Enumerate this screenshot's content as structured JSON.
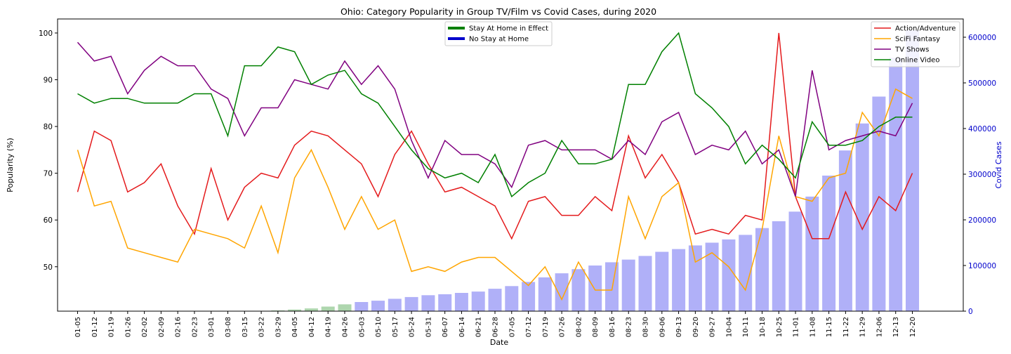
{
  "chart_data": {
    "type": "line",
    "title": "Ohio: Category Popularity in Group TV/Film vs Covid Cases, during 2020",
    "xlabel": "Date",
    "ylabel": "Popularity (%)",
    "y2label": "Covid Cases",
    "ylim": [
      40.5,
      103
    ],
    "yticks": [
      50,
      60,
      70,
      80,
      90,
      100
    ],
    "y2lim": [
      0,
      640000
    ],
    "y2ticks": [
      0,
      100000,
      200000,
      300000,
      400000,
      500000,
      600000
    ],
    "grid": false,
    "categories": [
      "01-05",
      "01-12",
      "01-19",
      "01-26",
      "02-02",
      "02-09",
      "02-16",
      "02-23",
      "03-01",
      "03-08",
      "03-15",
      "03-22",
      "03-29",
      "04-05",
      "04-12",
      "04-19",
      "04-26",
      "05-03",
      "05-10",
      "05-17",
      "05-24",
      "05-31",
      "06-07",
      "06-14",
      "06-21",
      "06-28",
      "07-05",
      "07-12",
      "07-19",
      "07-26",
      "08-02",
      "08-09",
      "08-16",
      "08-23",
      "08-30",
      "09-06",
      "09-13",
      "09-20",
      "09-27",
      "10-04",
      "10-11",
      "10-18",
      "10-25",
      "11-01",
      "11-08",
      "11-15",
      "11-22",
      "11-29",
      "12-06",
      "12-13",
      "12-20"
    ],
    "series": [
      {
        "name": "Action/Adventure",
        "color": "#e41a1c",
        "values": [
          66,
          79,
          77,
          66,
          68,
          72,
          63,
          57,
          71,
          60,
          67,
          70,
          69,
          76,
          79,
          78,
          75,
          72,
          65,
          74,
          79,
          72,
          66,
          67,
          65,
          63,
          56,
          64,
          65,
          61,
          61,
          65,
          62,
          78,
          69,
          74,
          68,
          57,
          58,
          57,
          61,
          60,
          100,
          65,
          56,
          56,
          66,
          58,
          65,
          62,
          70
        ]
      },
      {
        "name": "SciFi Fantasy",
        "color": "#ffa500",
        "values": [
          75,
          63,
          64,
          54,
          53,
          52,
          51,
          58,
          57,
          56,
          54,
          63,
          53,
          69,
          75,
          67,
          58,
          65,
          58,
          60,
          49,
          50,
          49,
          51,
          52,
          52,
          49,
          46,
          50,
          43,
          51,
          45,
          45,
          65,
          56,
          65,
          68,
          51,
          53,
          50,
          45,
          58,
          78,
          65,
          64,
          69,
          70,
          83,
          78,
          88,
          86
        ]
      },
      {
        "name": "TV Shows",
        "color": "#800080",
        "values": [
          98,
          94,
          95,
          87,
          92,
          95,
          93,
          93,
          88,
          86,
          78,
          84,
          84,
          90,
          89,
          88,
          94,
          89,
          93,
          88,
          77,
          69,
          77,
          74,
          74,
          72,
          67,
          76,
          77,
          75,
          75,
          75,
          73,
          77,
          74,
          81,
          83,
          74,
          76,
          75,
          79,
          72,
          75,
          65,
          92,
          75,
          77,
          78,
          79,
          78,
          85
        ]
      },
      {
        "name": "Online Video",
        "color": "#008000",
        "values": [
          87,
          85,
          86,
          86,
          85,
          85,
          85,
          87,
          87,
          78,
          93,
          93,
          97,
          96,
          89,
          91,
          92,
          87,
          85,
          80,
          75,
          71,
          69,
          70,
          68,
          74,
          65,
          68,
          70,
          77,
          72,
          72,
          73,
          89,
          89,
          96,
          100,
          87,
          84,
          80,
          72,
          76,
          73,
          69,
          81,
          76,
          76,
          77,
          80,
          82,
          82
        ]
      }
    ],
    "bars": {
      "name": "Covid Cases",
      "values": [
        0,
        0,
        0,
        0,
        0,
        0,
        0,
        0,
        0,
        0,
        0,
        0,
        1500,
        3500,
        6000,
        10000,
        15000,
        20000,
        23000,
        27000,
        31000,
        35000,
        37000,
        40000,
        43000,
        49000,
        55000,
        64000,
        74000,
        83000,
        92000,
        100000,
        107000,
        113000,
        121000,
        130000,
        136000,
        144000,
        150000,
        157000,
        167000,
        182000,
        197000,
        218000,
        251000,
        297000,
        352000,
        411000,
        470000,
        555000,
        615000
      ],
      "color_default": "#b0b0f8",
      "color_stay_at_home": "#aed6ae",
      "stay_at_home_flags": [
        0,
        0,
        0,
        0,
        0,
        0,
        0,
        0,
        0,
        0,
        0,
        0,
        1,
        1,
        1,
        1,
        1,
        0,
        0,
        0,
        0,
        0,
        0,
        0,
        0,
        0,
        0,
        0,
        0,
        0,
        0,
        0,
        0,
        0,
        0,
        0,
        0,
        0,
        0,
        0,
        0,
        0,
        0,
        0,
        0,
        0,
        0,
        0,
        0,
        0,
        0
      ]
    },
    "legend_bars": {
      "placement": "top-center",
      "entries": [
        {
          "label": "Stay At Home in Effect",
          "color": "#008000"
        },
        {
          "label": "No Stay at Home",
          "color": "#0000cc"
        }
      ]
    },
    "legend_lines": {
      "placement": "top-right",
      "entries": [
        {
          "label": "Action/Adventure",
          "color": "#e41a1c"
        },
        {
          "label": "SciFi Fantasy",
          "color": "#ffa500"
        },
        {
          "label": "TV Shows",
          "color": "#800080"
        },
        {
          "label": "Online Video",
          "color": "#008000"
        }
      ]
    },
    "y2_color": "#0000cc"
  }
}
